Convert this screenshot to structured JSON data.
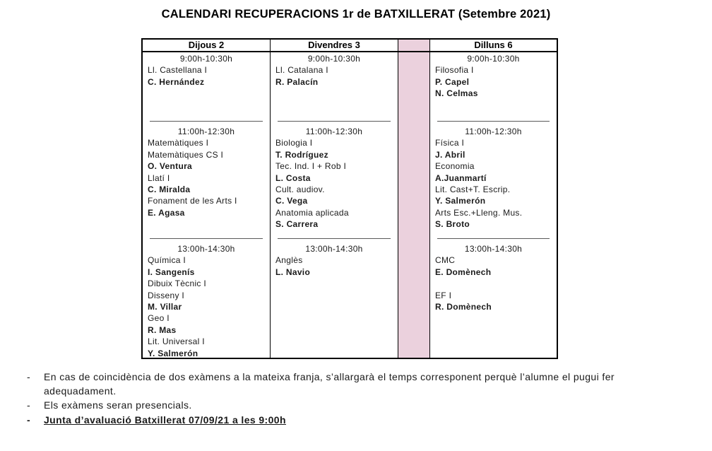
{
  "title": "CALENDARI RECUPERACIONS 1r de BATXILLERAT (Setembre 2021)",
  "table": {
    "spacer_color": "#ebd1dd",
    "columns": [
      {
        "header": "Dijous 2",
        "blocks": [
          {
            "time": "9:00h-10:30h",
            "lines": [
              {
                "text": "Ll. Castellana I",
                "bold": false
              },
              {
                "text": "C. Hernández",
                "bold": true
              }
            ]
          },
          {
            "time": "11:00h-12:30h",
            "lines": [
              {
                "text": "Matemàtiques I",
                "bold": false
              },
              {
                "text": "Matemàtiques CS I",
                "bold": false
              },
              {
                "text": "O. Ventura",
                "bold": true
              },
              {
                "text": "Llatí I",
                "bold": false
              },
              {
                "text": "C. Miralda",
                "bold": true
              },
              {
                "text": "Fonament de les Arts I",
                "bold": false
              },
              {
                "text": "E. Agasa",
                "bold": true
              }
            ]
          },
          {
            "time": "13:00h-14:30h",
            "lines": [
              {
                "text": "Química I",
                "bold": false
              },
              {
                "text": "I. Sangenís",
                "bold": true
              },
              {
                "text": "Dibuix Tècnic I",
                "bold": false
              },
              {
                "text": "Disseny I",
                "bold": false
              },
              {
                "text": "M. Villar",
                "bold": true
              },
              {
                "text": "Geo I",
                "bold": false
              },
              {
                "text": "R. Mas",
                "bold": true
              },
              {
                "text": "Lit. Universal I",
                "bold": false
              },
              {
                "text": "Y. Salmerón",
                "bold": true
              }
            ]
          }
        ]
      },
      {
        "header": "Divendres 3",
        "blocks": [
          {
            "time": "9:00h-10:30h",
            "lines": [
              {
                "text": "Ll. Catalana I",
                "bold": false
              },
              {
                "text": "R. Palacín",
                "bold": true
              }
            ]
          },
          {
            "time": "11:00h-12:30h",
            "lines": [
              {
                "text": "Biologia I",
                "bold": false
              },
              {
                "text": "T. Rodríguez",
                "bold": true
              },
              {
                "text": "Tec. Ind. I + Rob I",
                "bold": false
              },
              {
                "text": "L. Costa",
                "bold": true
              },
              {
                "text": "Cult. audiov.",
                "bold": false
              },
              {
                "text": "C. Vega",
                "bold": true
              },
              {
                "text": "Anatomia aplicada",
                "bold": false
              },
              {
                "text": "S. Carrera",
                "bold": true
              }
            ]
          },
          {
            "time": "13:00h-14:30h",
            "lines": [
              {
                "text": "Anglès",
                "bold": false
              },
              {
                "text": "L. Navio",
                "bold": true
              }
            ]
          }
        ]
      },
      {
        "header": "Dilluns 6",
        "blocks": [
          {
            "time": "9:00h-10:30h",
            "lines": [
              {
                "text": "Filosofia I",
                "bold": false
              },
              {
                "text": "P. Capel",
                "bold": true
              },
              {
                "text": "N. Celmas",
                "bold": true
              }
            ]
          },
          {
            "time": "11:00h-12:30h",
            "lines": [
              {
                "text": "Física I",
                "bold": false
              },
              {
                "text": "J. Abril",
                "bold": true
              },
              {
                "text": "Economia",
                "bold": false
              },
              {
                "text": "A.Juanmartí",
                "bold": true
              },
              {
                "text": "Lit. Cast+T. Escrip.",
                "bold": false
              },
              {
                "text": "Y. Salmerón",
                "bold": true
              },
              {
                "text": "Arts Esc.+Lleng. Mus.",
                "bold": false
              },
              {
                "text": "S. Broto",
                "bold": true
              }
            ]
          },
          {
            "time": "13:00h-14:30h",
            "lines": [
              {
                "text": "CMC",
                "bold": false
              },
              {
                "text": "E. Domènech",
                "bold": true
              },
              {
                "text": "",
                "bold": false
              },
              {
                "text": "EF I",
                "bold": false
              },
              {
                "text": "R. Domènech",
                "bold": true
              }
            ]
          }
        ]
      }
    ]
  },
  "notes": {
    "items": [
      {
        "dash": "-",
        "text": "En cas de coincidència de dos exàmens a la mateixa franja, s’allargarà el temps corresponent perquè l’alumne el pugui fer adequadament.",
        "bold": false,
        "underline": false
      },
      {
        "dash": "-",
        "text": "Els exàmens seran presencials.",
        "bold": false,
        "underline": false
      },
      {
        "dash": "-",
        "text": "Junta d’avaluació Batxillerat 07/09/21 a les 9:00h",
        "bold": true,
        "underline": true
      }
    ]
  }
}
